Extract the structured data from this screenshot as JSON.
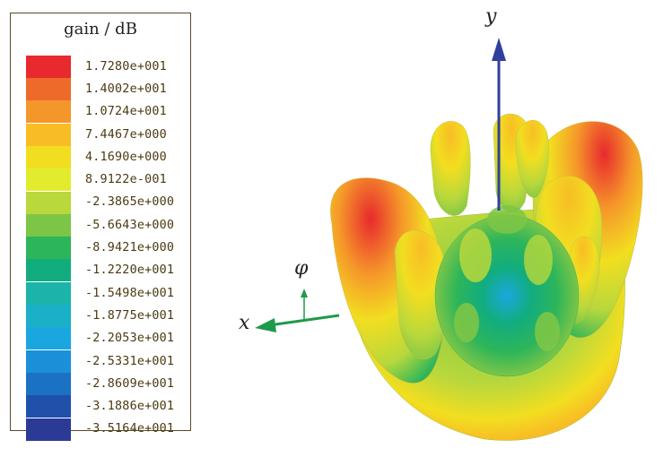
{
  "legend": {
    "title": "gain / dB",
    "entries": [
      {
        "label": "1.7280e+001",
        "color": "#e8292d"
      },
      {
        "label": "1.4002e+001",
        "color": "#ee6a2a"
      },
      {
        "label": "1.0724e+001",
        "color": "#f5962a"
      },
      {
        "label": "7.4467e+000",
        "color": "#f8bd25"
      },
      {
        "label": "4.1690e+000",
        "color": "#f2de20"
      },
      {
        "label": "8.9122e-001",
        "color": "#e2ec2d"
      },
      {
        "label": "-2.3865e+000",
        "color": "#b8d83c"
      },
      {
        "label": "-5.6643e+000",
        "color": "#7cc547"
      },
      {
        "label": "-8.9421e+000",
        "color": "#2db55a"
      },
      {
        "label": "-1.2220e+001",
        "color": "#12ad7e"
      },
      {
        "label": "-1.5498e+001",
        "color": "#1cb3aa"
      },
      {
        "label": "-1.8775e+001",
        "color": "#1ab0c8"
      },
      {
        "label": "-2.2053e+001",
        "color": "#1aa7e0"
      },
      {
        "label": "-2.5331e+001",
        "color": "#1b8fd8"
      },
      {
        "label": "-2.8609e+001",
        "color": "#1b72c4"
      },
      {
        "label": "-3.1886e+001",
        "color": "#1f50aa"
      },
      {
        "label": "-3.5164e+001",
        "color": "#2b3a94"
      }
    ]
  },
  "axes": {
    "x_label": "x",
    "y_label": "y",
    "phi_label": "φ",
    "x_color": "#1e9a4a",
    "y_color": "#2f3f9e"
  }
}
